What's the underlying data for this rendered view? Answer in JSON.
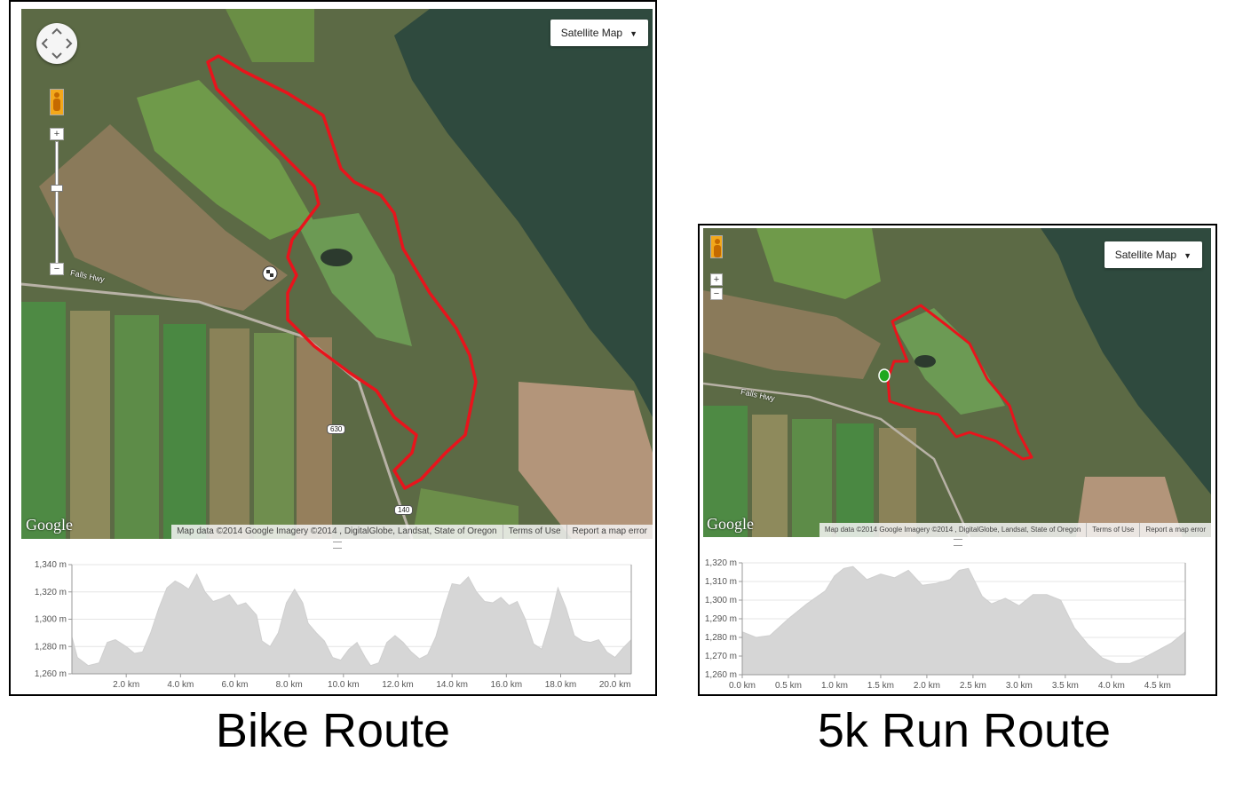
{
  "panels": {
    "bike": {
      "caption": "Bike Route",
      "map_type_button": "Satellite Map",
      "google_logo": "Google",
      "attribution": "Map data ©2014 Google Imagery ©2014 , DigitalGlobe, Landsat, State of Oregon",
      "terms": "Terms of Use",
      "report": "Report a map error",
      "road_label": "Falls Hwy",
      "shields": [
        "630",
        "140"
      ],
      "zoom_in": "+",
      "zoom_out": "−",
      "route_color": "#e8141c",
      "marker_icon": "checkered-flag-icon"
    },
    "run": {
      "caption": "5k Run Route",
      "map_type_button": "Satellite Map",
      "google_logo": "Google",
      "attribution": "Map data ©2014 Google Imagery ©2014 , DigitalGlobe, Landsat, State of Oregon",
      "terms": "Terms of Use",
      "report": "Report a map error",
      "road_label": "Falls Hwy",
      "zoom_in": "+",
      "zoom_out": "−",
      "route_color": "#e8141c",
      "marker_icon": "green-start-marker-icon",
      "marker_color": "#1ea81e"
    }
  },
  "chart_data": [
    {
      "type": "area",
      "name": "bike-elevation",
      "xlim": [
        0,
        20.6
      ],
      "ylim": [
        1260,
        1340
      ],
      "x_ticks": [
        2,
        4,
        6,
        8,
        10,
        12,
        14,
        16,
        18,
        20
      ],
      "x_tick_labels": [
        "2.0 km",
        "4.0 km",
        "6.0 km",
        "8.0 km",
        "10.0 km",
        "12.0 km",
        "14.0 km",
        "16.0 km",
        "18.0 km",
        "20.0 km"
      ],
      "y_ticks": [
        1260,
        1280,
        1300,
        1320,
        1340
      ],
      "y_tick_labels": [
        "1,260 m",
        "1,280 m",
        "1,300 m",
        "1,320 m",
        "1,340 m"
      ],
      "grid": true,
      "x": [
        0,
        0.2,
        0.6,
        1.0,
        1.3,
        1.6,
        2.0,
        2.3,
        2.6,
        2.9,
        3.2,
        3.5,
        3.8,
        4.0,
        4.3,
        4.6,
        4.9,
        5.2,
        5.5,
        5.8,
        6.1,
        6.4,
        6.8,
        7.0,
        7.3,
        7.6,
        7.9,
        8.2,
        8.5,
        8.7,
        9.0,
        9.3,
        9.6,
        9.9,
        10.2,
        10.5,
        10.8,
        11.0,
        11.3,
        11.6,
        11.9,
        12.2,
        12.5,
        12.8,
        13.1,
        13.4,
        13.7,
        14.0,
        14.3,
        14.6,
        14.9,
        15.2,
        15.5,
        15.8,
        16.1,
        16.4,
        16.7,
        17.0,
        17.3,
        17.6,
        17.9,
        18.2,
        18.5,
        18.8,
        19.1,
        19.4,
        19.7,
        20.0,
        20.3,
        20.6
      ],
      "y": [
        1287,
        1272,
        1266,
        1268,
        1283,
        1285,
        1280,
        1275,
        1276,
        1290,
        1308,
        1323,
        1328,
        1326,
        1322,
        1333,
        1320,
        1313,
        1315,
        1318,
        1310,
        1312,
        1303,
        1284,
        1280,
        1290,
        1312,
        1322,
        1312,
        1297,
        1290,
        1284,
        1272,
        1270,
        1278,
        1283,
        1272,
        1266,
        1268,
        1283,
        1288,
        1283,
        1276,
        1271,
        1274,
        1287,
        1308,
        1326,
        1325,
        1331,
        1320,
        1313,
        1312,
        1316,
        1310,
        1313,
        1300,
        1282,
        1278,
        1298,
        1323,
        1308,
        1288,
        1284,
        1283,
        1285,
        1276,
        1272,
        1279,
        1285
      ]
    },
    {
      "type": "area",
      "name": "run-elevation",
      "xlim": [
        0,
        4.8
      ],
      "ylim": [
        1260,
        1320
      ],
      "x_ticks": [
        0,
        0.5,
        1.0,
        1.5,
        2.0,
        2.5,
        3.0,
        3.5,
        4.0,
        4.5
      ],
      "x_tick_labels": [
        "0.0 km",
        "0.5 km",
        "1.0 km",
        "1.5 km",
        "2.0 km",
        "2.5 km",
        "3.0 km",
        "3.5 km",
        "4.0 km",
        "4.5 km"
      ],
      "y_ticks": [
        1260,
        1270,
        1280,
        1290,
        1300,
        1310,
        1320
      ],
      "y_tick_labels": [
        "1,260 m",
        "1,270 m",
        "1,280 m",
        "1,290 m",
        "1,300 m",
        "1,310 m",
        "1,320 m"
      ],
      "grid": true,
      "x": [
        0,
        0.15,
        0.3,
        0.5,
        0.7,
        0.9,
        1.0,
        1.1,
        1.2,
        1.35,
        1.5,
        1.65,
        1.8,
        1.95,
        2.1,
        2.25,
        2.35,
        2.45,
        2.6,
        2.7,
        2.85,
        3.0,
        3.15,
        3.3,
        3.45,
        3.6,
        3.75,
        3.9,
        4.05,
        4.2,
        4.35,
        4.5,
        4.65,
        4.8
      ],
      "y": [
        1283,
        1280,
        1281,
        1290,
        1298,
        1305,
        1313,
        1317,
        1318,
        1311,
        1314,
        1312,
        1316,
        1308,
        1309,
        1311,
        1316,
        1317,
        1302,
        1298,
        1301,
        1297,
        1303,
        1303,
        1300,
        1285,
        1276,
        1269,
        1266,
        1266,
        1269,
        1273,
        1277,
        1283
      ]
    }
  ]
}
